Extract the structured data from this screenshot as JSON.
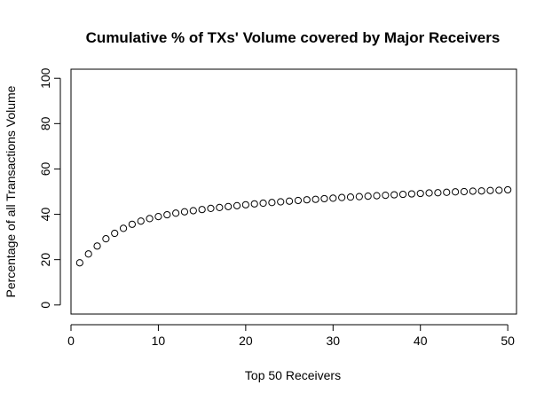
{
  "chart_data": {
    "type": "scatter",
    "title": "Cumulative % of TXs' Volume covered by Major Receivers",
    "xlabel": "Top 50 Receivers",
    "ylabel": "Percentage of all Transactions Volume",
    "xlim": [
      0,
      51
    ],
    "ylim": [
      -4,
      104
    ],
    "x_ticks": [
      0,
      10,
      20,
      30,
      40,
      50
    ],
    "y_ticks": [
      0,
      20,
      40,
      60,
      80,
      100
    ],
    "grid": false,
    "legend": "none",
    "marker": "open-circle",
    "x": [
      1,
      2,
      3,
      4,
      5,
      6,
      7,
      8,
      9,
      10,
      11,
      12,
      13,
      14,
      15,
      16,
      17,
      18,
      19,
      20,
      21,
      22,
      23,
      24,
      25,
      26,
      27,
      28,
      29,
      30,
      31,
      32,
      33,
      34,
      35,
      36,
      37,
      38,
      39,
      40,
      41,
      42,
      43,
      44,
      45,
      46,
      47,
      48,
      49,
      50
    ],
    "y": [
      18.6,
      22.5,
      26.0,
      29.2,
      31.6,
      33.8,
      35.6,
      37.0,
      38.1,
      39.0,
      39.8,
      40.5,
      41.1,
      41.6,
      42.1,
      42.6,
      43.0,
      43.4,
      43.8,
      44.2,
      44.6,
      44.9,
      45.2,
      45.5,
      45.8,
      46.1,
      46.4,
      46.6,
      46.9,
      47.1,
      47.4,
      47.6,
      47.8,
      48.0,
      48.2,
      48.4,
      48.6,
      48.8,
      49.0,
      49.2,
      49.4,
      49.5,
      49.7,
      49.9,
      50.0,
      50.2,
      50.3,
      50.5,
      50.6,
      50.8
    ]
  }
}
